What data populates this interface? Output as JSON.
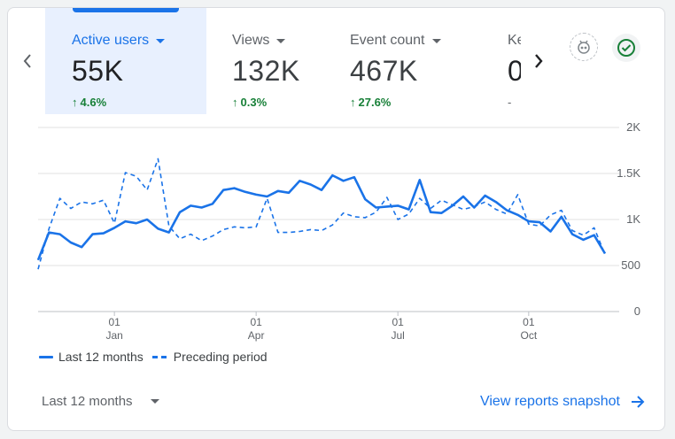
{
  "colors": {
    "accent": "#1a73e8",
    "selected_bg": "#e8f0fe",
    "positive": "#188038",
    "grid": "#e0e0e0",
    "text_muted": "#5f6368"
  },
  "nav": {
    "prev_icon": "chevron-left-icon",
    "next_icon": "chevron-right-icon"
  },
  "metrics": [
    {
      "label": "Active users",
      "value": "55K",
      "change": "4.6%",
      "selected": true
    },
    {
      "label": "Views",
      "value": "132K",
      "change": "0.3%",
      "selected": false
    },
    {
      "label": "Event count",
      "value": "467K",
      "change": "27.6%",
      "selected": false
    },
    {
      "label": "Ke",
      "value": "0",
      "change": "-",
      "selected": false
    }
  ],
  "actions": {
    "insights_icon": "insights-badge-icon",
    "status_icon": "check-circle-icon"
  },
  "chart_data": {
    "type": "line",
    "y_ticks": [
      "0",
      "500",
      "1K",
      "1.5K",
      "2K"
    ],
    "ylim": [
      0,
      2000
    ],
    "x_ticks": [
      {
        "day": "01",
        "month": "Jan"
      },
      {
        "day": "01",
        "month": "Apr"
      },
      {
        "day": "01",
        "month": "Jul"
      },
      {
        "day": "01",
        "month": "Oct"
      }
    ],
    "x_tick_indices": [
      7,
      20,
      33,
      45
    ],
    "series": [
      {
        "name": "Last 12 months",
        "style": "solid",
        "values": [
          560,
          860,
          840,
          750,
          700,
          840,
          850,
          910,
          980,
          960,
          1000,
          900,
          860,
          1080,
          1150,
          1130,
          1170,
          1320,
          1340,
          1300,
          1270,
          1250,
          1310,
          1290,
          1420,
          1380,
          1320,
          1480,
          1420,
          1460,
          1220,
          1130,
          1140,
          1150,
          1110,
          1430,
          1080,
          1070,
          1150,
          1250,
          1130,
          1260,
          1190,
          1100,
          1050,
          980,
          970,
          870,
          1030,
          840,
          780,
          830,
          630
        ]
      },
      {
        "name": "Preceding period",
        "style": "dashed",
        "values": [
          460,
          900,
          1230,
          1120,
          1190,
          1170,
          1210,
          960,
          1510,
          1470,
          1320,
          1660,
          930,
          790,
          840,
          770,
          820,
          890,
          920,
          910,
          920,
          1230,
          860,
          860,
          870,
          890,
          880,
          940,
          1070,
          1030,
          1020,
          1080,
          1240,
          1000,
          1060,
          1230,
          1120,
          1210,
          1160,
          1110,
          1140,
          1190,
          1110,
          1060,
          1270,
          950,
          930,
          1050,
          1100,
          880,
          830,
          910,
          620
        ]
      }
    ]
  },
  "legend": [
    {
      "label": "Last 12 months",
      "style": "solid"
    },
    {
      "label": "Preceding period",
      "style": "dashed"
    }
  ],
  "footer": {
    "range_label": "Last 12 months",
    "link_label": "View reports snapshot"
  }
}
